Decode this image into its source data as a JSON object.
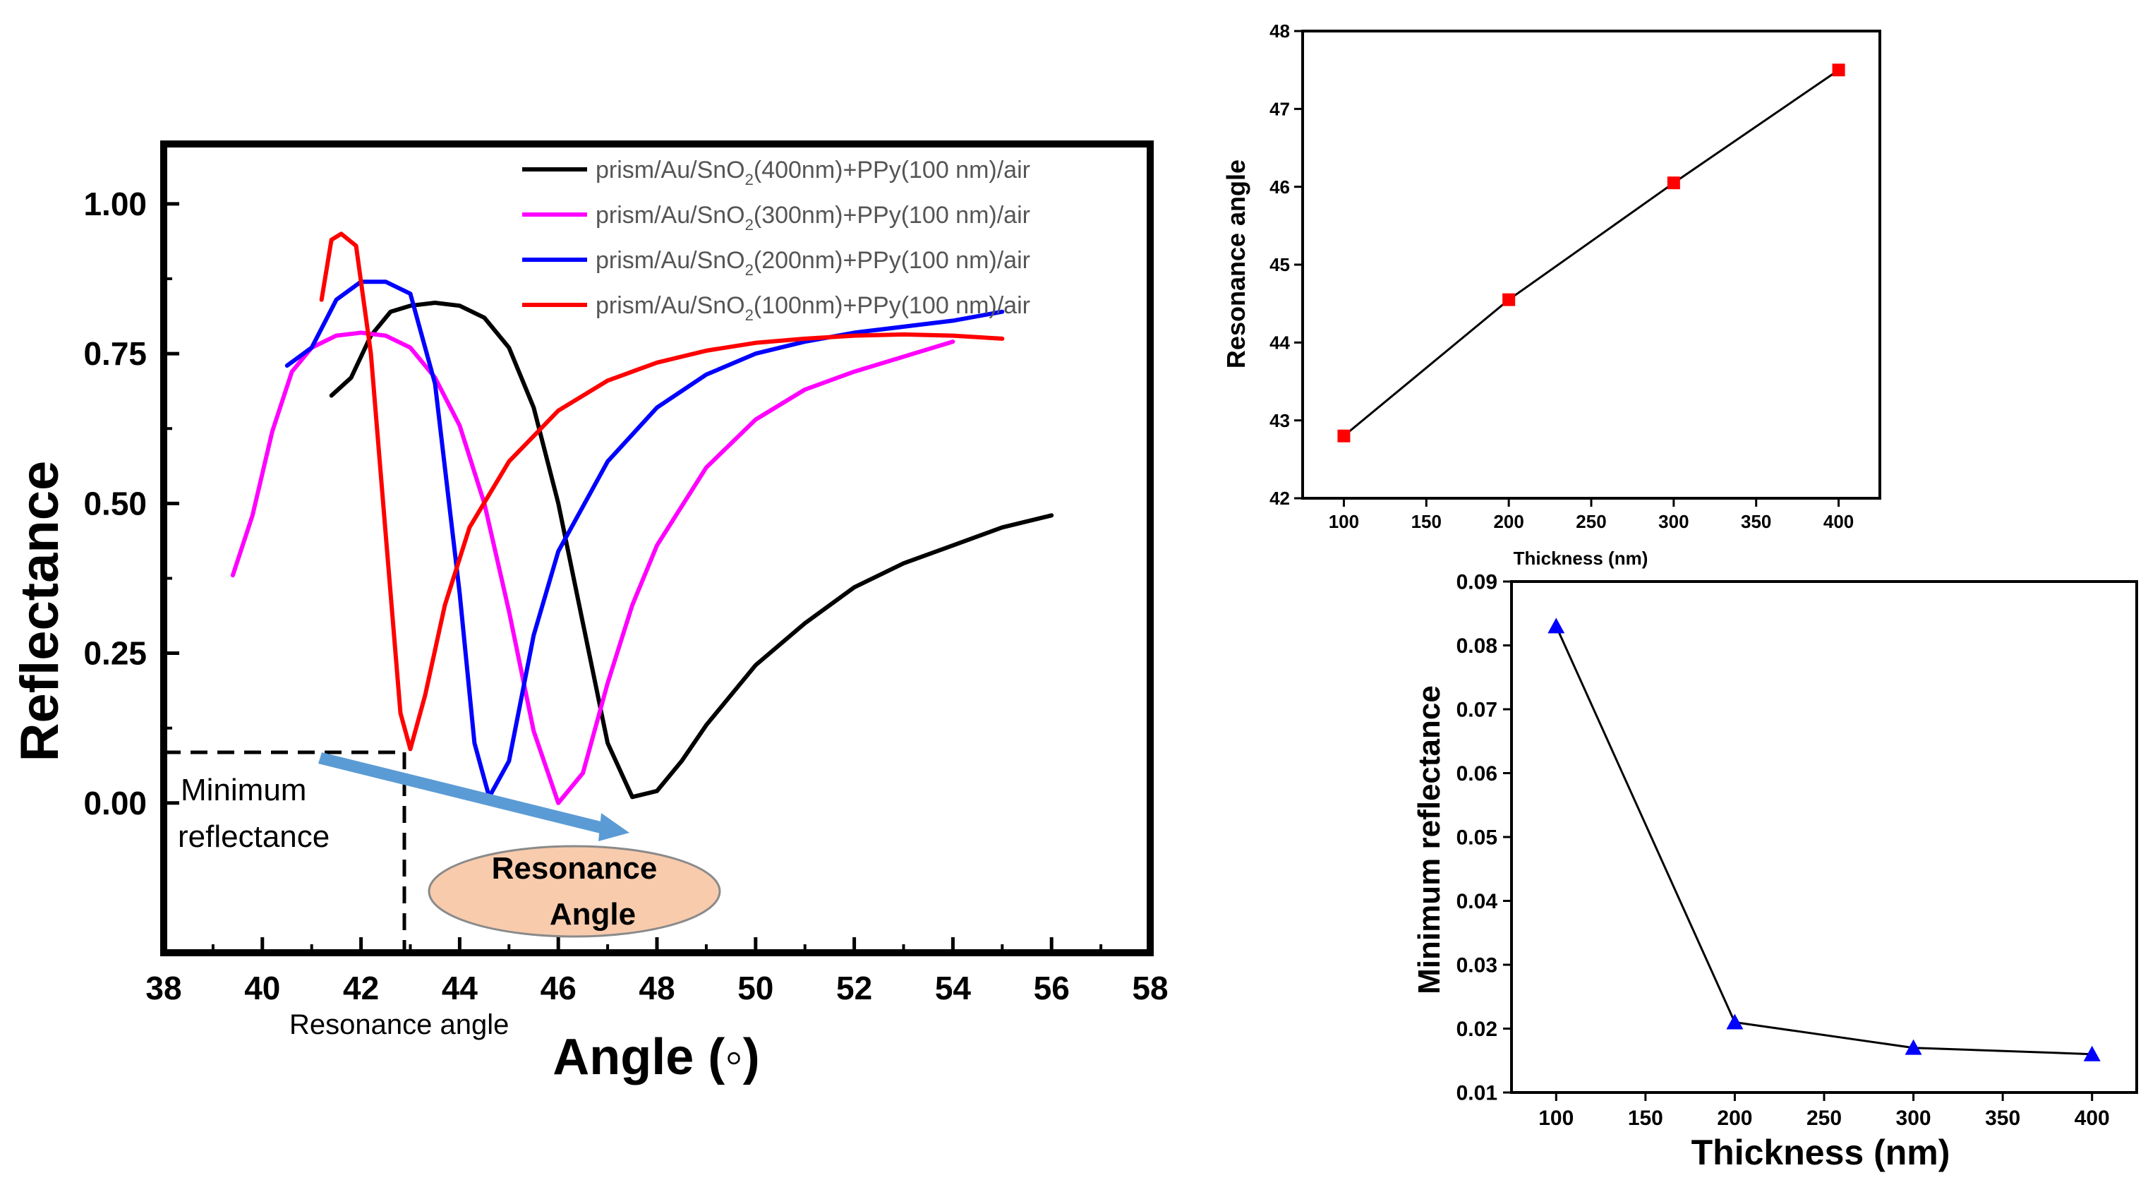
{
  "chart_data": [
    {
      "type": "line",
      "xlabel": "Angle (◦)",
      "ylabel": "Reflectance",
      "xlim": [
        38,
        58
      ],
      "ylim": [
        -0.25,
        1.1
      ],
      "xticks": [
        "38",
        "40",
        "42",
        "44",
        "46",
        "48",
        "50",
        "52",
        "54",
        "56",
        "58"
      ],
      "yticks": [
        "0.00",
        "0.25",
        "0.50",
        "0.75",
        "1.00"
      ],
      "legend_position": "top-right",
      "series": [
        {
          "name": "400nm",
          "legend_prefix": "prism/Au/SnO",
          "legend_sub": "2",
          "legend_suffix": "(400nm)+PPy(100 nm)/air",
          "color": "#000000",
          "x": [
            41.4,
            41.8,
            42.2,
            42.6,
            43.0,
            43.5,
            44.0,
            44.5,
            45.0,
            45.5,
            46.0,
            46.5,
            47.0,
            47.5,
            48.0,
            48.5,
            49.0,
            50.0,
            51.0,
            52.0,
            53.0,
            54.0,
            55.0,
            56.0
          ],
          "y": [
            0.68,
            0.71,
            0.78,
            0.82,
            0.83,
            0.835,
            0.83,
            0.81,
            0.76,
            0.66,
            0.5,
            0.3,
            0.1,
            0.01,
            0.02,
            0.07,
            0.13,
            0.23,
            0.3,
            0.36,
            0.4,
            0.43,
            0.46,
            0.48
          ]
        },
        {
          "name": "300nm",
          "legend_prefix": "prism/Au/SnO",
          "legend_sub": "2",
          "legend_suffix": "(300nm)+PPy(100 nm)/air",
          "color": "#ff00ff",
          "x": [
            39.4,
            39.8,
            40.2,
            40.6,
            41.0,
            41.5,
            42.0,
            42.5,
            43.0,
            43.5,
            44.0,
            44.5,
            45.0,
            45.5,
            46.0,
            46.5,
            47.0,
            47.5,
            48.0,
            49.0,
            50.0,
            51.0,
            52.0,
            53.0,
            54.0
          ],
          "y": [
            0.38,
            0.48,
            0.62,
            0.72,
            0.76,
            0.78,
            0.785,
            0.78,
            0.76,
            0.71,
            0.63,
            0.5,
            0.32,
            0.12,
            0.0,
            0.05,
            0.2,
            0.33,
            0.43,
            0.56,
            0.64,
            0.69,
            0.72,
            0.745,
            0.77
          ]
        },
        {
          "name": "200nm",
          "legend_prefix": "prism/Au/SnO",
          "legend_sub": "2",
          "legend_suffix": "(200nm)+PPy(100 nm)/air",
          "color": "#0000ff",
          "x": [
            40.5,
            41.0,
            41.5,
            42.0,
            42.5,
            43.0,
            43.5,
            44.0,
            44.3,
            44.6,
            45.0,
            45.5,
            46.0,
            47.0,
            48.0,
            49.0,
            50.0,
            51.0,
            52.0,
            53.0,
            54.0,
            55.0
          ],
          "y": [
            0.73,
            0.76,
            0.84,
            0.87,
            0.87,
            0.85,
            0.7,
            0.35,
            0.1,
            0.01,
            0.07,
            0.28,
            0.42,
            0.57,
            0.66,
            0.715,
            0.75,
            0.77,
            0.785,
            0.795,
            0.805,
            0.82
          ]
        },
        {
          "name": "100nm",
          "legend_prefix": "prism/Au/SnO",
          "legend_sub": "2",
          "legend_suffix": "(100nm)+PPy(100 nm)/air",
          "color": "#ff0000",
          "x": [
            41.2,
            41.4,
            41.6,
            41.9,
            42.2,
            42.5,
            42.8,
            43.0,
            43.3,
            43.7,
            44.2,
            45.0,
            46.0,
            47.0,
            48.0,
            49.0,
            50.0,
            51.0,
            52.0,
            53.0,
            54.0,
            55.0
          ],
          "y": [
            0.84,
            0.94,
            0.95,
            0.93,
            0.75,
            0.45,
            0.15,
            0.09,
            0.18,
            0.33,
            0.46,
            0.57,
            0.655,
            0.705,
            0.735,
            0.755,
            0.768,
            0.775,
            0.78,
            0.782,
            0.78,
            0.775
          ]
        }
      ],
      "annotations": {
        "min_reflectance_line1": "Minimum",
        "min_reflectance_line2": "reflectance",
        "resonance_line1": "Resonance",
        "resonance_line2": "Angle",
        "resonance_angle_label": "Resonance angle",
        "arrow_color": "#5b9bd5",
        "ellipse_color": "#f8cbad"
      }
    },
    {
      "type": "line",
      "xlabel": "Thickness (nm)",
      "ylabel": "Resonance angle",
      "xlim": [
        75,
        425
      ],
      "ylim": [
        42,
        48
      ],
      "xticks": [
        "100",
        "150",
        "200",
        "250",
        "300",
        "350",
        "400"
      ],
      "yticks": [
        "42",
        "43",
        "44",
        "45",
        "46",
        "47",
        "48"
      ],
      "marker": "square",
      "color": "#ff0000",
      "x": [
        100,
        200,
        300,
        400
      ],
      "y": [
        42.8,
        44.55,
        46.05,
        47.5
      ]
    },
    {
      "type": "line",
      "xlabel": "Thickness (nm)",
      "ylabel": "Minimum reflectance",
      "xlim": [
        75,
        425
      ],
      "ylim": [
        0.01,
        0.09
      ],
      "xticks": [
        "100",
        "150",
        "200",
        "250",
        "300",
        "350",
        "400"
      ],
      "yticks": [
        "0.01",
        "0.02",
        "0.03",
        "0.04",
        "0.05",
        "0.06",
        "0.07",
        "0.08",
        "0.09"
      ],
      "marker": "triangle",
      "color": "#0000ff",
      "x": [
        100,
        200,
        300,
        400
      ],
      "y": [
        0.083,
        0.021,
        0.017,
        0.016
      ]
    }
  ]
}
